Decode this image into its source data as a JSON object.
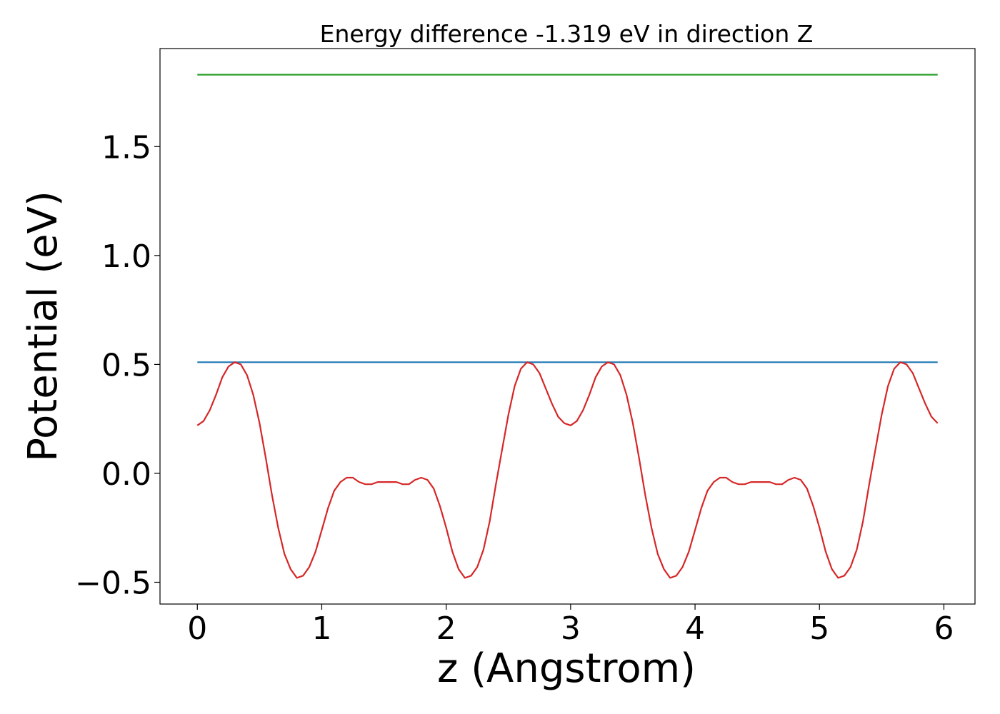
{
  "chart_data": {
    "type": "line",
    "title": "Energy difference -1.319 eV in direction Z",
    "xlabel": "z (Angstrom)",
    "ylabel": "Potential (eV)",
    "xlim": [
      -0.3,
      6.25
    ],
    "ylim": [
      -0.6,
      1.95
    ],
    "xticks": [
      {
        "value": 0,
        "label": "0"
      },
      {
        "value": 1,
        "label": "1"
      },
      {
        "value": 2,
        "label": "2"
      },
      {
        "value": 3,
        "label": "3"
      },
      {
        "value": 4,
        "label": "4"
      },
      {
        "value": 5,
        "label": "5"
      },
      {
        "value": 6,
        "label": "6"
      }
    ],
    "yticks": [
      {
        "value": -0.5,
        "label": "−0.5"
      },
      {
        "value": 0.0,
        "label": "0.0"
      },
      {
        "value": 0.5,
        "label": "0.5"
      },
      {
        "value": 1.0,
        "label": "1.0"
      },
      {
        "value": 1.5,
        "label": "1.5"
      }
    ],
    "grid": false,
    "series": [
      {
        "color": "#2ca02c",
        "x": [
          0,
          5.95
        ],
        "y": [
          1.83,
          1.83
        ]
      },
      {
        "color": "#1f77b4",
        "x": [
          0,
          5.95
        ],
        "y": [
          0.51,
          0.51
        ]
      },
      {
        "color": "#d62728",
        "x": [
          0.0,
          0.05,
          0.1,
          0.15,
          0.2,
          0.25,
          0.3,
          0.35,
          0.4,
          0.45,
          0.5,
          0.55,
          0.6,
          0.65,
          0.7,
          0.75,
          0.8,
          0.85,
          0.9,
          0.95,
          1.0,
          1.05,
          1.1,
          1.15,
          1.2,
          1.25,
          1.3,
          1.35,
          1.4,
          1.45,
          1.5,
          1.55,
          1.6,
          1.65,
          1.7,
          1.75,
          1.8,
          1.85,
          1.9,
          1.95,
          2.0,
          2.05,
          2.1,
          2.15,
          2.2,
          2.25,
          2.3,
          2.35,
          2.4,
          2.45,
          2.5,
          2.55,
          2.6,
          2.65,
          2.7,
          2.75,
          2.8,
          2.85,
          2.9,
          2.95,
          3.0,
          3.05,
          3.1,
          3.15,
          3.2,
          3.25,
          3.3,
          3.35,
          3.4,
          3.45,
          3.5,
          3.55,
          3.6,
          3.65,
          3.7,
          3.75,
          3.8,
          3.85,
          3.9,
          3.95,
          4.0,
          4.05,
          4.1,
          4.15,
          4.2,
          4.25,
          4.3,
          4.35,
          4.4,
          4.45,
          4.5,
          4.55,
          4.6,
          4.65,
          4.7,
          4.75,
          4.8,
          4.85,
          4.9,
          4.95,
          5.0,
          5.05,
          5.1,
          5.15,
          5.2,
          5.25,
          5.3,
          5.35,
          5.4,
          5.45,
          5.5,
          5.55,
          5.6,
          5.65,
          5.7,
          5.75,
          5.8,
          5.85,
          5.9,
          5.95
        ],
        "y": [
          0.22,
          0.24,
          0.29,
          0.36,
          0.44,
          0.49,
          0.51,
          0.5,
          0.45,
          0.36,
          0.23,
          0.07,
          -0.1,
          -0.25,
          -0.37,
          -0.44,
          -0.48,
          -0.47,
          -0.43,
          -0.36,
          -0.26,
          -0.16,
          -0.08,
          -0.04,
          -0.02,
          -0.02,
          -0.04,
          -0.05,
          -0.05,
          -0.04,
          -0.04,
          -0.04,
          -0.04,
          -0.05,
          -0.05,
          -0.03,
          -0.02,
          -0.03,
          -0.07,
          -0.15,
          -0.25,
          -0.36,
          -0.44,
          -0.48,
          -0.47,
          -0.43,
          -0.35,
          -0.22,
          -0.05,
          0.11,
          0.27,
          0.4,
          0.48,
          0.51,
          0.5,
          0.46,
          0.39,
          0.32,
          0.26,
          0.23,
          0.22,
          0.24,
          0.29,
          0.36,
          0.44,
          0.49,
          0.51,
          0.5,
          0.45,
          0.36,
          0.23,
          0.07,
          -0.1,
          -0.25,
          -0.37,
          -0.44,
          -0.48,
          -0.47,
          -0.43,
          -0.36,
          -0.26,
          -0.16,
          -0.08,
          -0.04,
          -0.02,
          -0.02,
          -0.04,
          -0.05,
          -0.05,
          -0.04,
          -0.04,
          -0.04,
          -0.04,
          -0.05,
          -0.05,
          -0.03,
          -0.02,
          -0.03,
          -0.07,
          -0.15,
          -0.25,
          -0.36,
          -0.44,
          -0.48,
          -0.47,
          -0.43,
          -0.35,
          -0.22,
          -0.05,
          0.11,
          0.27,
          0.4,
          0.48,
          0.51,
          0.5,
          0.46,
          0.39,
          0.32,
          0.26,
          0.23
        ]
      }
    ]
  }
}
